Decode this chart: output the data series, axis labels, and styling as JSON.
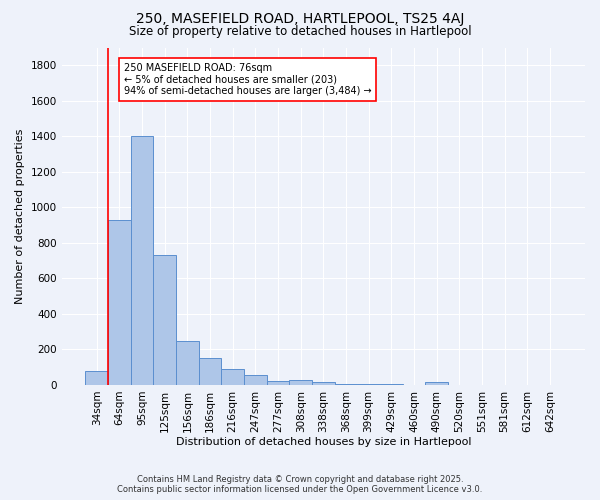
{
  "title1": "250, MASEFIELD ROAD, HARTLEPOOL, TS25 4AJ",
  "title2": "Size of property relative to detached houses in Hartlepool",
  "xlabel": "Distribution of detached houses by size in Hartlepool",
  "ylabel": "Number of detached properties",
  "categories": [
    "34sqm",
    "64sqm",
    "95sqm",
    "125sqm",
    "156sqm",
    "186sqm",
    "216sqm",
    "247sqm",
    "277sqm",
    "308sqm",
    "338sqm",
    "368sqm",
    "399sqm",
    "429sqm",
    "460sqm",
    "490sqm",
    "520sqm",
    "551sqm",
    "581sqm",
    "612sqm",
    "642sqm"
  ],
  "values": [
    80,
    930,
    1400,
    730,
    250,
    150,
    90,
    55,
    25,
    30,
    15,
    5,
    5,
    3,
    0,
    15,
    0,
    0,
    0,
    0,
    0
  ],
  "bar_color": "#aec6e8",
  "bar_edge_color": "#5b8fcf",
  "red_line_index": 1,
  "annotation_text": "250 MASEFIELD ROAD: 76sqm\n← 5% of detached houses are smaller (203)\n94% of semi-detached houses are larger (3,484) →",
  "annotation_box_color": "white",
  "annotation_box_edge": "red",
  "ylim": [
    0,
    1900
  ],
  "yticks": [
    0,
    200,
    400,
    600,
    800,
    1000,
    1200,
    1400,
    1600,
    1800
  ],
  "footer1": "Contains HM Land Registry data © Crown copyright and database right 2025.",
  "footer2": "Contains public sector information licensed under the Open Government Licence v3.0.",
  "bg_color": "#eef2fa",
  "grid_color": "white",
  "title1_fontsize": 10,
  "title2_fontsize": 8.5,
  "xlabel_fontsize": 8,
  "ylabel_fontsize": 8,
  "tick_fontsize": 7.5,
  "annot_fontsize": 7,
  "footer_fontsize": 6
}
